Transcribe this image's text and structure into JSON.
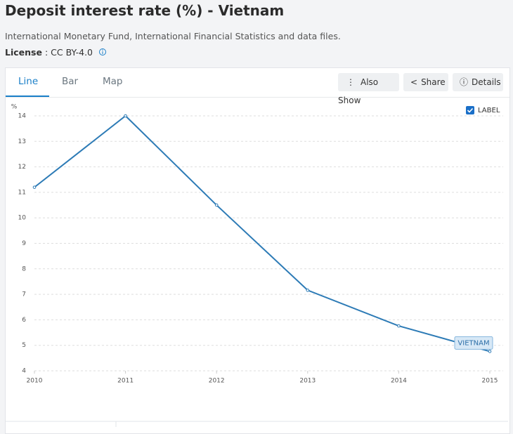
{
  "title": "Deposit interest rate (%) - Vietnam",
  "source": "International Monetary Fund, International Financial Statistics and data files.",
  "license_label": "License",
  "license_value": ": CC BY-4.0",
  "tabs": [
    "Line",
    "Bar",
    "Map"
  ],
  "buttons": [
    "Also Show",
    "Share",
    "Details"
  ],
  "label_toggle": "LABEL",
  "chart_data": {
    "type": "line",
    "y_label": "%",
    "x": [
      2010,
      2011,
      2012,
      2013,
      2014,
      2015
    ],
    "xlim": [
      2010,
      2015
    ],
    "xticks": [
      2010,
      2011,
      2012,
      2013,
      2014,
      2015
    ],
    "ylim": [
      4,
      14
    ],
    "yticks": [
      4,
      5,
      6,
      7,
      8,
      9,
      10,
      11,
      12,
      13,
      14
    ],
    "grid": true,
    "series": [
      {
        "name": "VIETNAM",
        "color": "#2d7bb6",
        "values": [
          11.2,
          14.0,
          10.5,
          7.16,
          5.76,
          4.76
        ]
      }
    ]
  }
}
